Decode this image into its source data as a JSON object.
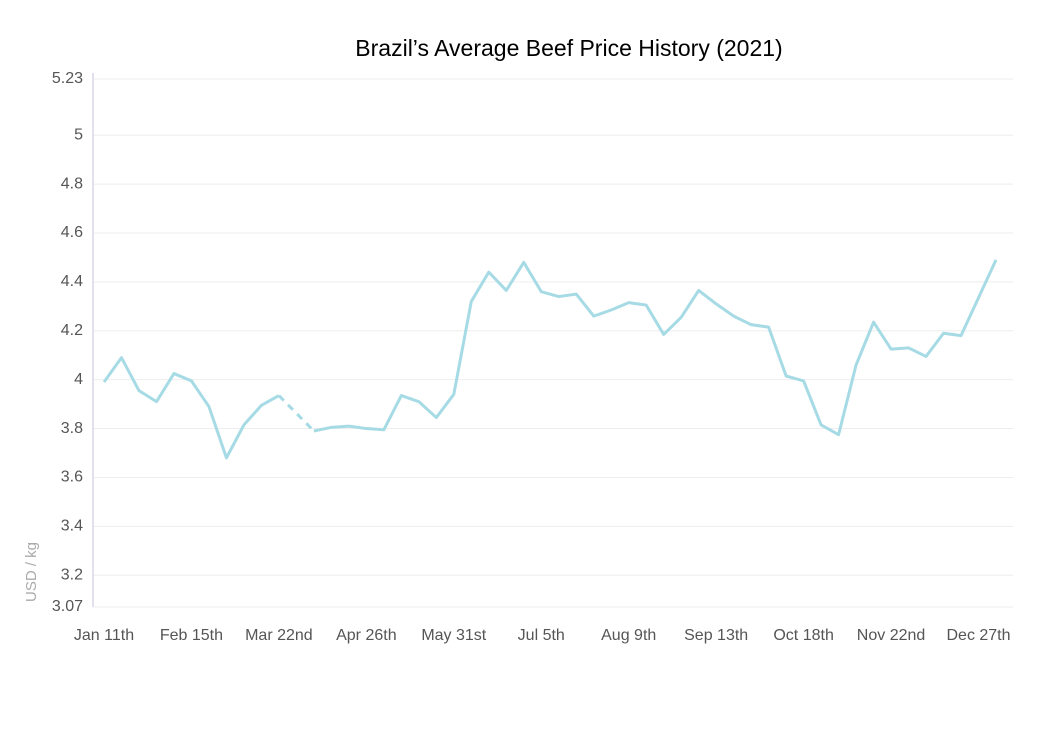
{
  "chart_data": {
    "type": "line",
    "title": "Brazil’s Average Beef Price History (2021)",
    "ylabel": "USD / kg",
    "categories": [
      "Jan 11th",
      null,
      null,
      null,
      null,
      "Feb 15th",
      null,
      null,
      null,
      null,
      "Mar 22nd",
      null,
      null,
      null,
      null,
      "Apr 26th",
      null,
      null,
      null,
      null,
      "May 31st",
      null,
      null,
      null,
      null,
      "Jul 5th",
      null,
      null,
      null,
      null,
      "Aug 9th",
      null,
      null,
      null,
      null,
      "Sep 13th",
      null,
      null,
      null,
      null,
      "Oct 18th",
      null,
      null,
      null,
      null,
      "Nov 22nd",
      null,
      null,
      null,
      null,
      "Dec 27th",
      null
    ],
    "values": [
      3.99,
      4.09,
      3.955,
      3.91,
      4.025,
      3.995,
      3.89,
      3.68,
      3.815,
      3.895,
      3.935,
      null,
      3.79,
      3.805,
      3.81,
      3.8,
      3.795,
      3.935,
      3.91,
      3.845,
      3.94,
      4.32,
      4.44,
      4.365,
      4.48,
      4.36,
      4.34,
      4.35,
      4.26,
      4.285,
      4.315,
      4.305,
      4.185,
      4.255,
      4.365,
      4.31,
      4.26,
      4.225,
      4.215,
      4.015,
      3.995,
      3.815,
      3.775,
      4.06,
      4.235,
      4.125,
      4.13,
      4.095,
      4.19,
      4.18,
      4.335,
      4.49
    ],
    "color": "#a6dbe5",
    "ylim": [
      3.07,
      5.23
    ],
    "yticks": [
      3.07,
      3.2,
      3.4,
      3.6,
      3.8,
      4,
      4.2,
      4.4,
      4.6,
      4.8,
      5,
      5.23
    ],
    "grid": true
  }
}
